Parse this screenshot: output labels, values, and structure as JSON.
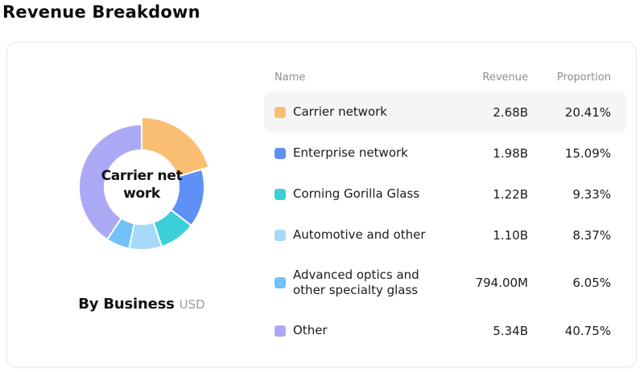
{
  "page": {
    "title": "Revenue Breakdown"
  },
  "card": {
    "chart": {
      "center_label_line1": "Carrier net",
      "center_label_line2": "work",
      "caption": "By Business",
      "caption_unit": "USD"
    },
    "table": {
      "headers": {
        "name": "Name",
        "revenue": "Revenue",
        "proportion": "Proportion"
      },
      "rows": [
        {
          "name": "Carrier network",
          "revenue": "2.68B",
          "proportion": "20.41%",
          "color": "#F9BE71",
          "highlighted": true
        },
        {
          "name": "Enterprise network",
          "revenue": "1.98B",
          "proportion": "15.09%",
          "color": "#5E90F6",
          "highlighted": false
        },
        {
          "name": "Corning Gorilla Glass",
          "revenue": "1.22B",
          "proportion": "9.33%",
          "color": "#3CCFD8",
          "highlighted": false
        },
        {
          "name": "Automotive and other",
          "revenue": "1.10B",
          "proportion": "8.37%",
          "color": "#A7D9F8",
          "highlighted": false
        },
        {
          "name": "Advanced optics and other specialty glass",
          "revenue": "794.00M",
          "proportion": "6.05%",
          "color": "#72C1F7",
          "highlighted": false
        },
        {
          "name": "Other",
          "revenue": "5.34B",
          "proportion": "40.75%",
          "color": "#ABA8F6",
          "highlighted": false
        }
      ]
    }
  },
  "chart_data": {
    "type": "pie",
    "subtype": "donut",
    "title": "By Business",
    "unit": "USD",
    "categories": [
      "Carrier network",
      "Enterprise network",
      "Corning Gorilla Glass",
      "Automotive and other",
      "Advanced optics and other specialty glass",
      "Other"
    ],
    "values": [
      20.41,
      15.09,
      9.33,
      8.37,
      6.05,
      40.75
    ],
    "revenues": [
      "2.68B",
      "1.98B",
      "1.22B",
      "1.10B",
      "794.00M",
      "5.34B"
    ],
    "colors": [
      "#F9BE71",
      "#5E90F6",
      "#3CCFD8",
      "#A7D9F8",
      "#72C1F7",
      "#ABA8F6"
    ],
    "selected_index": 0,
    "selected_label": "Carrier network",
    "start_angle_deg": 0,
    "direction": "clockwise",
    "legend_position": "right-table"
  }
}
